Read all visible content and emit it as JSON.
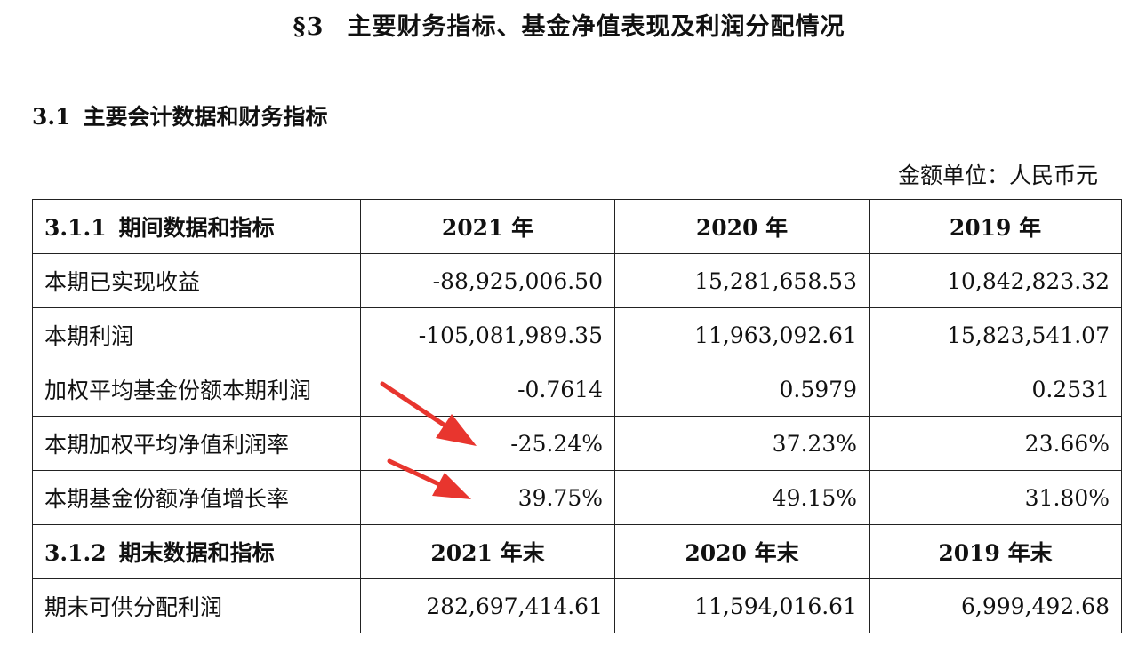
{
  "heading": {
    "section_no": "§3",
    "section_title": "主要财务指标、基金净值表现及利润分配情况"
  },
  "subheading": {
    "no": "3.1",
    "title": "主要会计数据和财务指标"
  },
  "unit_note": "金额单位：人民币元",
  "table": {
    "period_header": {
      "code": "3.1.1",
      "title": "期间数据和指标",
      "cols": [
        "2021 年",
        "2020 年",
        "2019 年"
      ]
    },
    "period_rows": [
      {
        "label": "本期已实现收益",
        "values": [
          "-88,925,006.50",
          "15,281,658.53",
          "10,842,823.32"
        ]
      },
      {
        "label": "本期利润",
        "values": [
          "-105,081,989.35",
          "11,963,092.61",
          "15,823,541.07"
        ]
      },
      {
        "label": "加权平均基金份额本期利润",
        "values": [
          "-0.7614",
          "0.5979",
          "0.2531"
        ]
      },
      {
        "label": "本期加权平均净值利润率",
        "values": [
          "-25.24%",
          "37.23%",
          "23.66%"
        ]
      },
      {
        "label": "本期基金份额净值增长率",
        "values": [
          "39.75%",
          "49.15%",
          "31.80%"
        ]
      }
    ],
    "end_header": {
      "code": "3.1.2",
      "title": "期末数据和指标",
      "cols": [
        "2021 年末",
        "2020 年末",
        "2019 年末"
      ]
    },
    "end_rows": [
      {
        "label": "期末可供分配利润",
        "values": [
          "282,697,414.61",
          "11,594,016.61",
          "6,999,492.68"
        ]
      }
    ]
  },
  "annotation_color": "#e8352e"
}
